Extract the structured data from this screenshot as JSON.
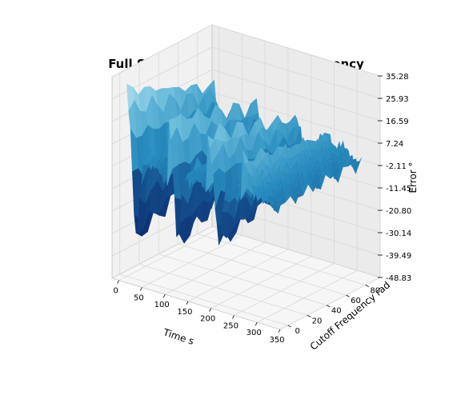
{
  "chart_data": {
    "type": "surface",
    "title": "Full System Error vs Cutoff Frequency",
    "xlabel": "Time s",
    "ylabel": "Cutoff Frequency rad",
    "zlabel": "Error °",
    "xlim": [
      -15,
      350
    ],
    "ylim": [
      -8,
      95
    ],
    "zlim": [
      -48.83,
      35.28
    ],
    "x_ticks": [
      0,
      50,
      100,
      150,
      200,
      250,
      300,
      350
    ],
    "y_ticks": [
      0,
      20,
      40,
      60,
      80
    ],
    "z_ticks": [
      "35.28",
      "25.93",
      "16.59",
      "7.24",
      "-2.11",
      "-11.45",
      "-20.80",
      "-30.14",
      "-39.49",
      "-48.83"
    ],
    "grid": true,
    "colormap": "ocean-blue",
    "colors": {
      "high": "#d6f0f8",
      "mid": "#2e86b5",
      "low": "#0c1f66",
      "pane": "#f1f1f1",
      "grid": "#d9d9d9",
      "edge": "#c4c4c4"
    },
    "surface_description_values": {
      "x_range": [
        0,
        320
      ],
      "y_range": [
        0,
        90
      ],
      "error_peaks": [
        {
          "x": 0,
          "z": 30
        },
        {
          "x": 90,
          "z": 26
        },
        {
          "x": 175,
          "z": 22
        },
        {
          "x": 250,
          "z": 16
        }
      ],
      "error_troughs": [
        {
          "x": 20,
          "z": -45
        },
        {
          "x": 110,
          "z": -40
        },
        {
          "x": 200,
          "z": -32
        }
      ]
    }
  }
}
